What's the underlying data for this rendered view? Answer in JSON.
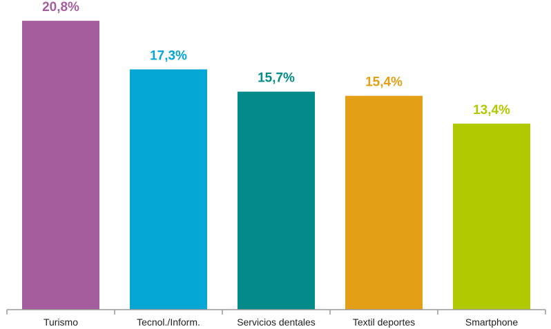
{
  "chart_data": {
    "type": "bar",
    "categories": [
      "Turismo",
      "Tecnol./Inform.",
      "Servicios dentales",
      "Textil deportes",
      "Smartphone"
    ],
    "values": [
      20.8,
      17.3,
      15.7,
      15.4,
      13.4
    ],
    "value_labels": [
      "20,8%",
      "17,3%",
      "15,7%",
      "15,4%",
      "13,4%"
    ],
    "colors": [
      "#a65d9e",
      "#04a6d3",
      "#028b88",
      "#e3a016",
      "#b1c900"
    ],
    "ylim": [
      0,
      22.3
    ],
    "grid": false,
    "legend": "none"
  }
}
